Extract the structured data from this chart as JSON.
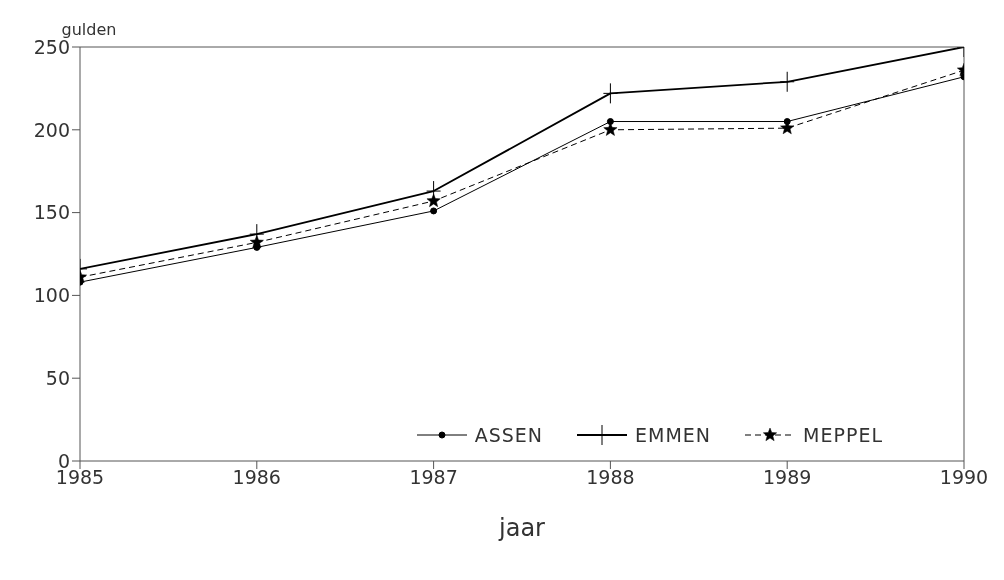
{
  "chart_data": {
    "type": "line",
    "ylabel": "gulden",
    "xlabel": "jaar",
    "x": [
      1985,
      1986,
      1987,
      1988,
      1989,
      1990
    ],
    "xlim": [
      1985,
      1990
    ],
    "xticks": [
      1985,
      1986,
      1987,
      1988,
      1989,
      1990
    ],
    "ylim": [
      0,
      250
    ],
    "yticks": [
      0,
      50,
      100,
      150,
      200,
      250
    ],
    "grid": false,
    "legend": "bottom right",
    "series": [
      {
        "name": "ASSEN",
        "color": "#000000",
        "marker": "circle",
        "line_style": "solid",
        "values": [
          108,
          129,
          151,
          205,
          205,
          232
        ]
      },
      {
        "name": "EMMEN",
        "color": "#000000",
        "marker": "cross",
        "line_style": "solid",
        "values": [
          116,
          137,
          163,
          222,
          229,
          250
        ]
      },
      {
        "name": "MEPPEL",
        "color": "#000000",
        "marker": "star",
        "line_style": "dashed",
        "values": [
          111,
          132,
          157,
          200,
          201,
          236
        ]
      }
    ]
  }
}
